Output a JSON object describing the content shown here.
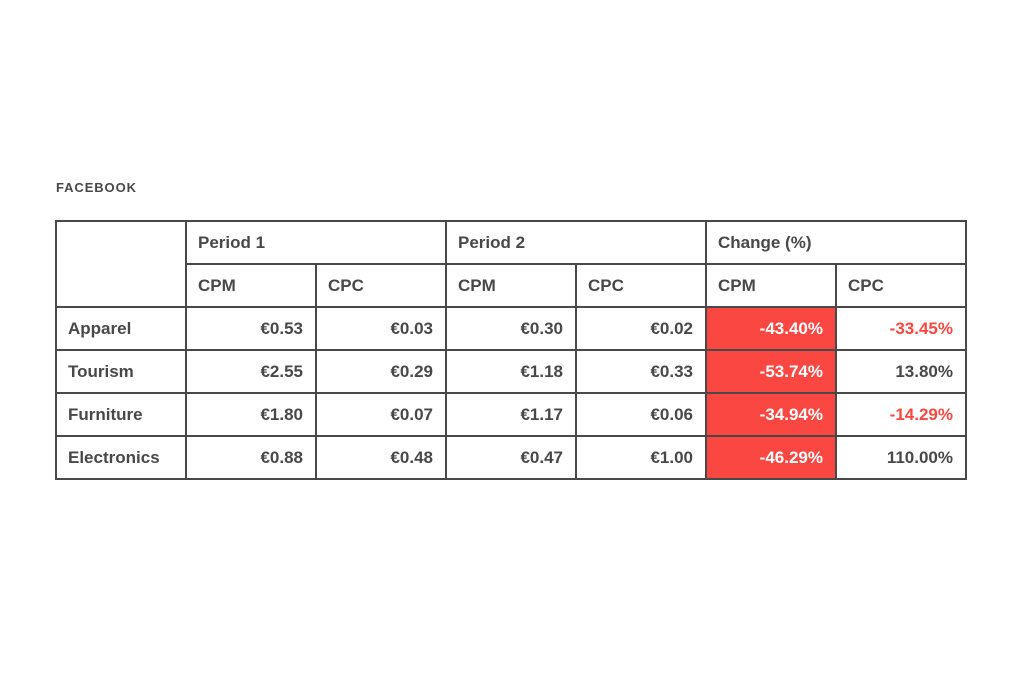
{
  "page": {
    "title": "FACEBOOK"
  },
  "colors": {
    "accent_red": "#fa4741",
    "text_dark": "#484848",
    "border_color": "#484848",
    "page_bg": "#ffffff",
    "change_cpm_cell_bg": "#fa4741",
    "change_cpm_cell_text": "#ffffff",
    "negative_change_text": "#fa4741"
  },
  "chart_data": {
    "type": "table",
    "title": "FACEBOOK",
    "column_groups": [
      "Period 1",
      "Period 2",
      "Change (%)"
    ],
    "sub_columns": [
      "CPM",
      "CPC"
    ],
    "headers": {
      "period1": "Period 1",
      "period2": "Period 2",
      "change": "Change (%)",
      "cpm": "CPM",
      "cpc": "CPC"
    },
    "categories": [
      "Apparel",
      "Tourism",
      "Furniture",
      "Electronics"
    ],
    "rows": [
      {
        "category": "Apparel",
        "period1": {
          "cpm": "€0.53",
          "cpc": "€0.03"
        },
        "period2": {
          "cpm": "€0.30",
          "cpc": "€0.02"
        },
        "change": {
          "cpm": "-43.40%",
          "cpc": "-33.45%"
        }
      },
      {
        "category": "Tourism",
        "period1": {
          "cpm": "€2.55",
          "cpc": "€0.29"
        },
        "period2": {
          "cpm": "€1.18",
          "cpc": "€0.33"
        },
        "change": {
          "cpm": "-53.74%",
          "cpc": "13.80%"
        }
      },
      {
        "category": "Furniture",
        "period1": {
          "cpm": "€1.80",
          "cpc": "€0.07"
        },
        "period2": {
          "cpm": "€1.17",
          "cpc": "€0.06"
        },
        "change": {
          "cpm": "-34.94%",
          "cpc": "-14.29%"
        }
      },
      {
        "category": "Electronics",
        "period1": {
          "cpm": "€0.88",
          "cpc": "€0.48"
        },
        "period2": {
          "cpm": "€0.47",
          "cpc": "€1.00"
        },
        "change": {
          "cpm": "-46.29%",
          "cpc": "110.00%"
        }
      }
    ]
  }
}
